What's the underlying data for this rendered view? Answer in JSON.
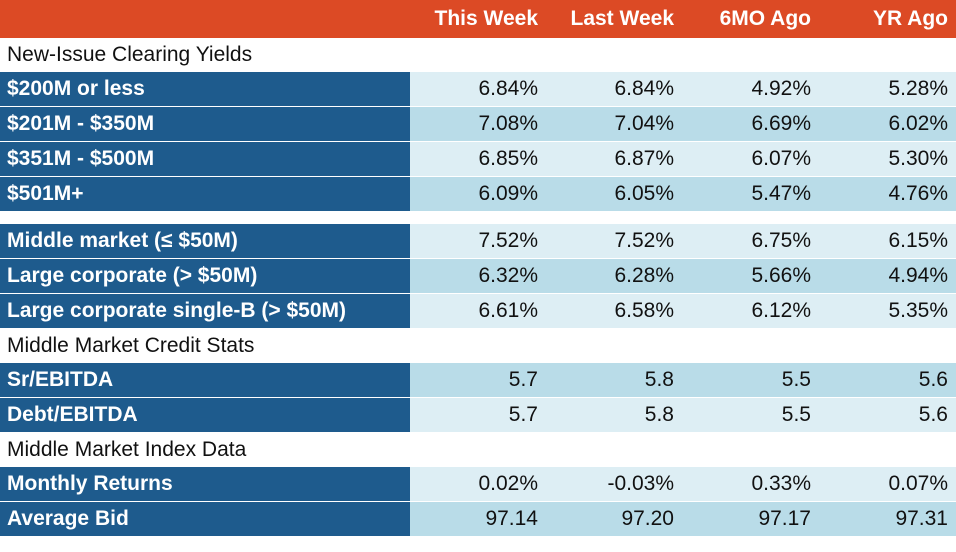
{
  "columns": [
    "This Week",
    "Last Week",
    "6MO Ago",
    "YR Ago"
  ],
  "sections": {
    "new_issue": {
      "title": "New-Issue Clearing Yields",
      "rows": [
        {
          "label": "$200M or less",
          "values": [
            "6.84%",
            "6.84%",
            "4.92%",
            "5.28%"
          ]
        },
        {
          "label": "$201M - $350M",
          "values": [
            "7.08%",
            "7.04%",
            "6.69%",
            "6.02%"
          ]
        },
        {
          "label": "$351M - $500M",
          "values": [
            "6.85%",
            "6.87%",
            "6.07%",
            "5.30%"
          ]
        },
        {
          "label": "$501M+",
          "values": [
            "6.09%",
            "6.05%",
            "5.47%",
            "4.76%"
          ]
        }
      ],
      "rows2": [
        {
          "label": "Middle market (≤ $50M)",
          "values": [
            "7.52%",
            "7.52%",
            "6.75%",
            "6.15%"
          ]
        },
        {
          "label": "Large corporate (> $50M)",
          "values": [
            "6.32%",
            "6.28%",
            "5.66%",
            "4.94%"
          ]
        },
        {
          "label": "Large corporate single-B (> $50M)",
          "values": [
            "6.61%",
            "6.58%",
            "6.12%",
            "5.35%"
          ]
        }
      ]
    },
    "credit_stats": {
      "title": "Middle Market Credit Stats",
      "rows": [
        {
          "label": "Sr/EBITDA",
          "values": [
            "5.7",
            "5.8",
            "5.5",
            "5.6"
          ]
        },
        {
          "label": "Debt/EBITDA",
          "values": [
            "5.7",
            "5.8",
            "5.5",
            "5.6"
          ]
        }
      ]
    },
    "index_data": {
      "title": "Middle Market Index Data",
      "rows": [
        {
          "label": "Monthly Returns",
          "values": [
            "0.02%",
            "-0.03%",
            "0.33%",
            "0.07%"
          ]
        },
        {
          "label": "Average Bid",
          "values": [
            "97.14",
            "97.20",
            "97.17",
            "97.31"
          ]
        }
      ]
    }
  },
  "colors": {
    "header_bg": "#dc4a25",
    "label_bg": "#1e5b8d",
    "row_light": "#ddeef4",
    "row_dark": "#b9dce8"
  }
}
